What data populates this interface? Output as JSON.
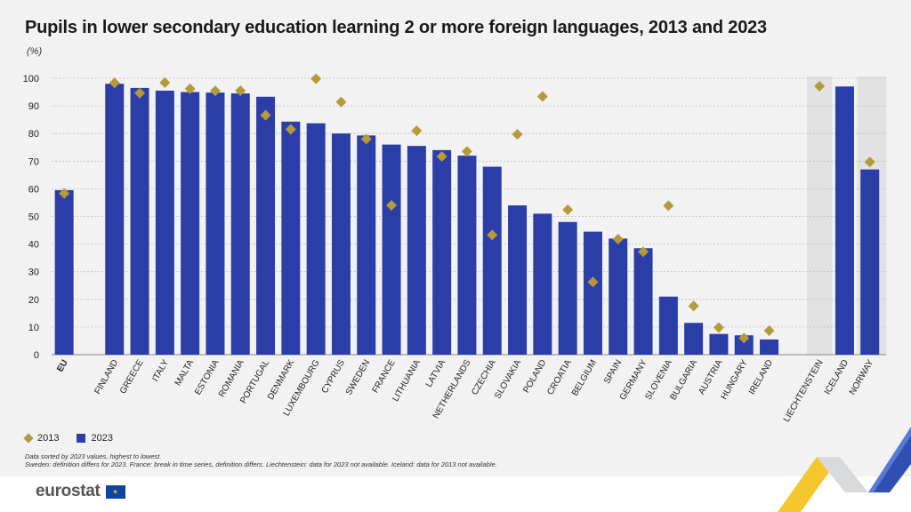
{
  "title": "Pupils in lower secondary education learning 2 or more foreign languages, 2013 and 2023",
  "unit": "(%)",
  "legend": {
    "series_2013": "2013",
    "series_2023": "2023"
  },
  "notes": [
    "Data sorted by 2023 values, highest to lowest.",
    "Sweden: definition differs for 2023. France: break in time series, definition differs. Liechtenstein: data for 2023 not available. Iceland: data for 2013 not available."
  ],
  "logo": {
    "text": "eurostat"
  },
  "colors": {
    "bar_2023": "#2b3ea8",
    "marker_2013": "#b59a3b",
    "shaded_group": "#e2e2e2",
    "background": "#f2f2f2"
  },
  "chart_data": {
    "type": "bar",
    "ylim": [
      0,
      100
    ],
    "yticks": [
      0,
      10,
      20,
      30,
      40,
      50,
      60,
      70,
      80,
      90,
      100
    ],
    "grid": true,
    "legend_position": "bottom-left",
    "categories": [
      "EU",
      "FINLAND",
      "GREECE",
      "ITALY",
      "MALTA",
      "ESTONIA",
      "ROMANIA",
      "PORTUGAL",
      "DENMARK",
      "LUXEMBOURG",
      "CYPRUS",
      "SWEDEN",
      "FRANCE",
      "LITHUANIA",
      "LATVIA",
      "NETHERLANDS",
      "CZECHIA",
      "SLOVAKIA",
      "POLAND",
      "CROATIA",
      "BELGIUM",
      "SPAIN",
      "GERMANY",
      "SLOVENIA",
      "BULGARIA",
      "AUSTRIA",
      "HUNGARY",
      "IRELAND",
      "LIECHTENSTEIN",
      "ICELAND",
      "NORWAY"
    ],
    "groups": [
      {
        "name": "eu",
        "categories": [
          "EU"
        ]
      },
      {
        "name": "member-states",
        "categories": [
          "FINLAND",
          "GREECE",
          "ITALY",
          "MALTA",
          "ESTONIA",
          "ROMANIA",
          "PORTUGAL",
          "DENMARK",
          "LUXEMBOURG",
          "CYPRUS",
          "SWEDEN",
          "FRANCE",
          "LITHUANIA",
          "LATVIA",
          "NETHERLANDS",
          "CZECHIA",
          "SLOVAKIA",
          "POLAND",
          "CROATIA",
          "BELGIUM",
          "SPAIN",
          "GERMANY",
          "SLOVENIA",
          "BULGARIA",
          "AUSTRIA",
          "HUNGARY",
          "IRELAND"
        ]
      },
      {
        "name": "efta",
        "categories": [
          "LIECHTENSTEIN",
          "ICELAND",
          "NORWAY"
        ]
      }
    ],
    "series": [
      {
        "name": "2023",
        "kind": "bar",
        "values": [
          59.5,
          98,
          96.5,
          95.5,
          95,
          94.8,
          94.5,
          93.3,
          84.3,
          83.7,
          80,
          79.3,
          76,
          75.5,
          74,
          72,
          68,
          54,
          51,
          48,
          44.5,
          42,
          38.5,
          21,
          11.5,
          7.5,
          7,
          5.5,
          null,
          97,
          67
        ]
      },
      {
        "name": "2013",
        "kind": "marker",
        "values": [
          58.3,
          98.3,
          94.6,
          98.4,
          96.2,
          95.4,
          95.5,
          86.6,
          81.5,
          99.8,
          91.4,
          78,
          54,
          81,
          71.7,
          73.5,
          43.3,
          79.7,
          93.4,
          52.4,
          26.3,
          41.8,
          37.2,
          53.9,
          17.6,
          9.8,
          6,
          8.7,
          97.1,
          null,
          69.7
        ]
      }
    ]
  }
}
